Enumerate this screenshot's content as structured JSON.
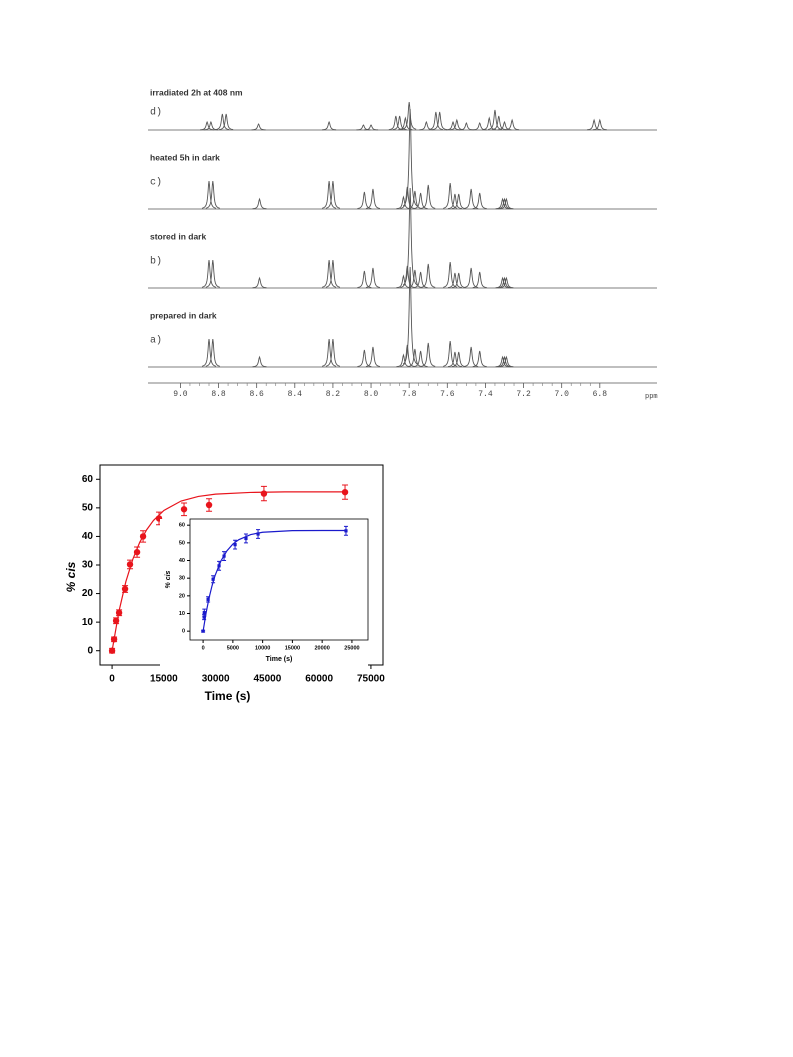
{
  "chart_data": [
    {
      "type": "spectrum",
      "xlabel": "ppm",
      "xlim": [
        9.17,
        6.5
      ],
      "xticks": [
        {
          "value": 9,
          "label": "9.0"
        },
        8.8,
        8.6,
        8.4,
        8.2,
        {
          "value": 8,
          "label": "8.0"
        },
        7.8,
        7.6,
        7.4,
        7.2,
        {
          "value": 7,
          "label": "7.0"
        },
        6.8
      ],
      "series": [
        {
          "name": "irradiated 2h at 408 nm",
          "tag": "d)",
          "color": "#555555",
          "x": [
            8.86,
            8.84,
            8.78,
            8.76,
            8.59,
            8.22,
            8.04,
            8.0,
            7.87,
            7.85,
            7.82,
            7.8,
            7.71,
            7.66,
            7.64,
            7.57,
            7.55,
            7.5,
            7.43,
            7.38,
            7.35,
            7.33,
            7.3,
            7.26,
            6.83,
            6.8
          ],
          "values": [
            8,
            8,
            16,
            16,
            6,
            8,
            5,
            5,
            14,
            14,
            12,
            28,
            8,
            18,
            18,
            8,
            10,
            7,
            7,
            12,
            20,
            14,
            8,
            10,
            10,
            10
          ]
        },
        {
          "name": "heated 5h in dark",
          "tag": "c)",
          "color": "#555555",
          "x": [
            8.85,
            8.83,
            8.585,
            8.22,
            8.2,
            8.035,
            7.99,
            7.83,
            7.81,
            7.795,
            7.77,
            7.74,
            7.7,
            7.585,
            7.56,
            7.54,
            7.475,
            7.43,
            7.31,
            7.3,
            7.29
          ],
          "values": [
            28,
            28,
            10,
            28,
            28,
            17,
            20,
            12,
            22,
            100,
            18,
            16,
            24,
            26,
            15,
            15,
            20,
            16,
            10,
            10,
            10
          ]
        },
        {
          "name": "stored in dark",
          "tag": "b)",
          "color": "#555555",
          "x": [
            8.85,
            8.83,
            8.585,
            8.22,
            8.2,
            8.035,
            7.99,
            7.83,
            7.81,
            7.795,
            7.77,
            7.74,
            7.7,
            7.585,
            7.56,
            7.54,
            7.475,
            7.43,
            7.31,
            7.3,
            7.29
          ],
          "values": [
            28,
            28,
            10,
            28,
            28,
            17,
            20,
            12,
            22,
            100,
            18,
            16,
            24,
            26,
            15,
            15,
            20,
            16,
            10,
            10,
            10
          ]
        },
        {
          "name": "prepared in dark",
          "tag": "a)",
          "color": "#555555",
          "x": [
            8.85,
            8.83,
            8.585,
            8.22,
            8.2,
            8.035,
            7.99,
            7.83,
            7.81,
            7.795,
            7.77,
            7.74,
            7.7,
            7.585,
            7.56,
            7.54,
            7.475,
            7.43,
            7.31,
            7.3,
            7.29
          ],
          "values": [
            28,
            28,
            10,
            28,
            28,
            17,
            20,
            12,
            22,
            100,
            18,
            16,
            24,
            26,
            15,
            15,
            20,
            16,
            10,
            10,
            10
          ]
        }
      ]
    },
    {
      "type": "scatter",
      "xlabel": "Time (s)",
      "ylabel": "% cis",
      "xlim": [
        -3500,
        78500
      ],
      "ylim": [
        -5,
        65
      ],
      "xticks": [
        0,
        15000,
        30000,
        45000,
        60000,
        75000
      ],
      "yticks": [
        0,
        10,
        20,
        30,
        40,
        50,
        60
      ],
      "series": [
        {
          "color": "#e8141c",
          "marker": "circle",
          "x": [
            0,
            580,
            1160,
            2030,
            3760,
            5200,
            7240,
            8980,
            13600,
            20850,
            28100,
            44000,
            67500
          ],
          "values": [
            0,
            4,
            10.5,
            13.3,
            21.6,
            30.2,
            34.5,
            40,
            46.3,
            49.5,
            51,
            55,
            55.5
          ],
          "errors": [
            0.8,
            0.8,
            1,
            1,
            1.2,
            1.5,
            1.8,
            2,
            2.2,
            2.2,
            2.2,
            2.5,
            2.5
          ]
        },
        {
          "color": "#e8141c",
          "marker": "line",
          "x": [
            0,
            2000,
            4000,
            6000,
            8000,
            10000,
            12000,
            15000,
            20000,
            25000,
            30000,
            40000,
            50000,
            60000,
            68000
          ],
          "values": [
            0,
            13.8,
            24.2,
            32,
            37.9,
            42.3,
            45.6,
            49.1,
            52.4,
            54,
            54.8,
            55.4,
            55.6,
            55.6,
            55.6
          ]
        }
      ]
    },
    {
      "type": "scatter",
      "xlabel": "Time (s)",
      "ylabel": "% cis",
      "xlim": [
        -2200,
        27700
      ],
      "ylim": [
        -5,
        63.5
      ],
      "xticks": [
        0,
        5000,
        10000,
        15000,
        20000,
        25000
      ],
      "yticks": [
        0,
        10,
        20,
        30,
        40,
        50,
        60
      ],
      "series": [
        {
          "color": "#1a1acc",
          "marker": "square",
          "x": [
            0,
            170,
            200,
            840,
            1680,
            2680,
            3520,
            5370,
            7200,
            9230,
            24000
          ],
          "values": [
            0,
            8,
            10.5,
            18,
            29.4,
            37,
            42.5,
            49,
            52.5,
            55,
            56.8
          ],
          "errors": [
            0.5,
            1.5,
            2,
            1.5,
            2,
            2.5,
            2.5,
            2.5,
            2.5,
            2.5,
            2.5
          ]
        },
        {
          "color": "#1a1acc",
          "marker": "line",
          "x": [
            0,
            500,
            1000,
            1500,
            2000,
            3000,
            4000,
            5000,
            6000,
            8000,
            10000,
            15000,
            20000,
            24000
          ],
          "values": [
            0,
            10.3,
            18.8,
            25.7,
            31.4,
            39.8,
            45.5,
            49.3,
            51.8,
            54.7,
            56,
            56.9,
            57,
            57
          ]
        }
      ]
    }
  ]
}
